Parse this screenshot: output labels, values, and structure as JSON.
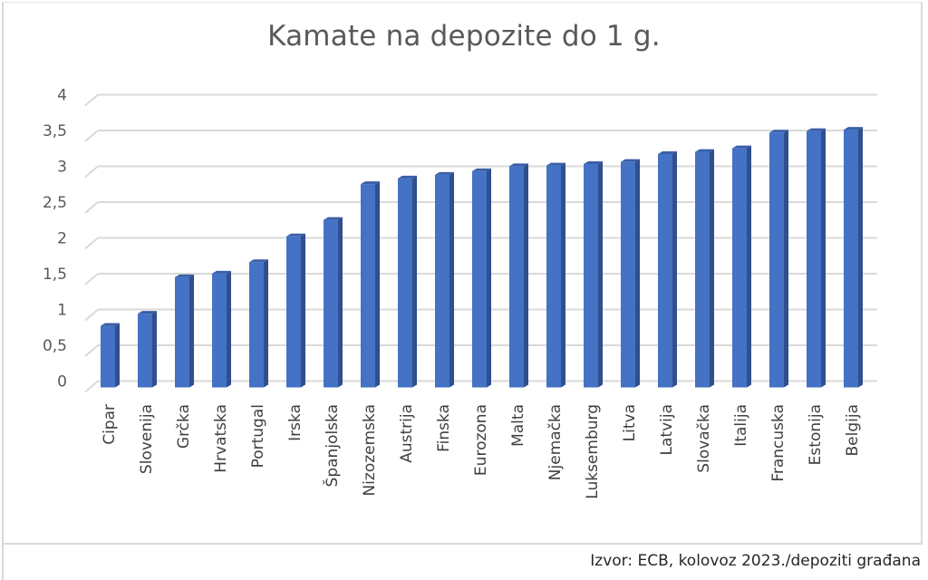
{
  "chart_data": {
    "type": "bar",
    "style": "3d-column",
    "title": "Kamate na depozite do 1 g.",
    "xlabel": "",
    "ylabel": "",
    "ylim": [
      0,
      4
    ],
    "yticks": [
      "0",
      "0,5",
      "1",
      "1,5",
      "2",
      "2,5",
      "3",
      "3,5",
      "4"
    ],
    "grid": true,
    "legend": null,
    "categories": [
      "Cipar",
      "Slovenija",
      "Grčka",
      "Hrvatska",
      "Portugal",
      "Irska",
      "Španjolska",
      "Nizozemska",
      "Austrija",
      "Finska",
      "Eurozona",
      "Malta",
      "Njemačka",
      "Luksemburg",
      "Litva",
      "Latvija",
      "Slovačka",
      "Italija",
      "Francuska",
      "Estonija",
      "Belgija"
    ],
    "values": [
      0.86,
      1.03,
      1.54,
      1.59,
      1.75,
      2.11,
      2.34,
      2.84,
      2.92,
      2.97,
      3.02,
      3.09,
      3.1,
      3.12,
      3.15,
      3.26,
      3.29,
      3.34,
      3.56,
      3.58,
      3.6
    ],
    "colors": {
      "bar_front": "#4472C4",
      "bar_side": "#2F4F8F",
      "bar_top": "#3A5FA8",
      "grid": "#d9d9d9"
    }
  },
  "footer": {
    "source": "Izvor: ECB, kolovoz 2023./depoziti građana"
  }
}
